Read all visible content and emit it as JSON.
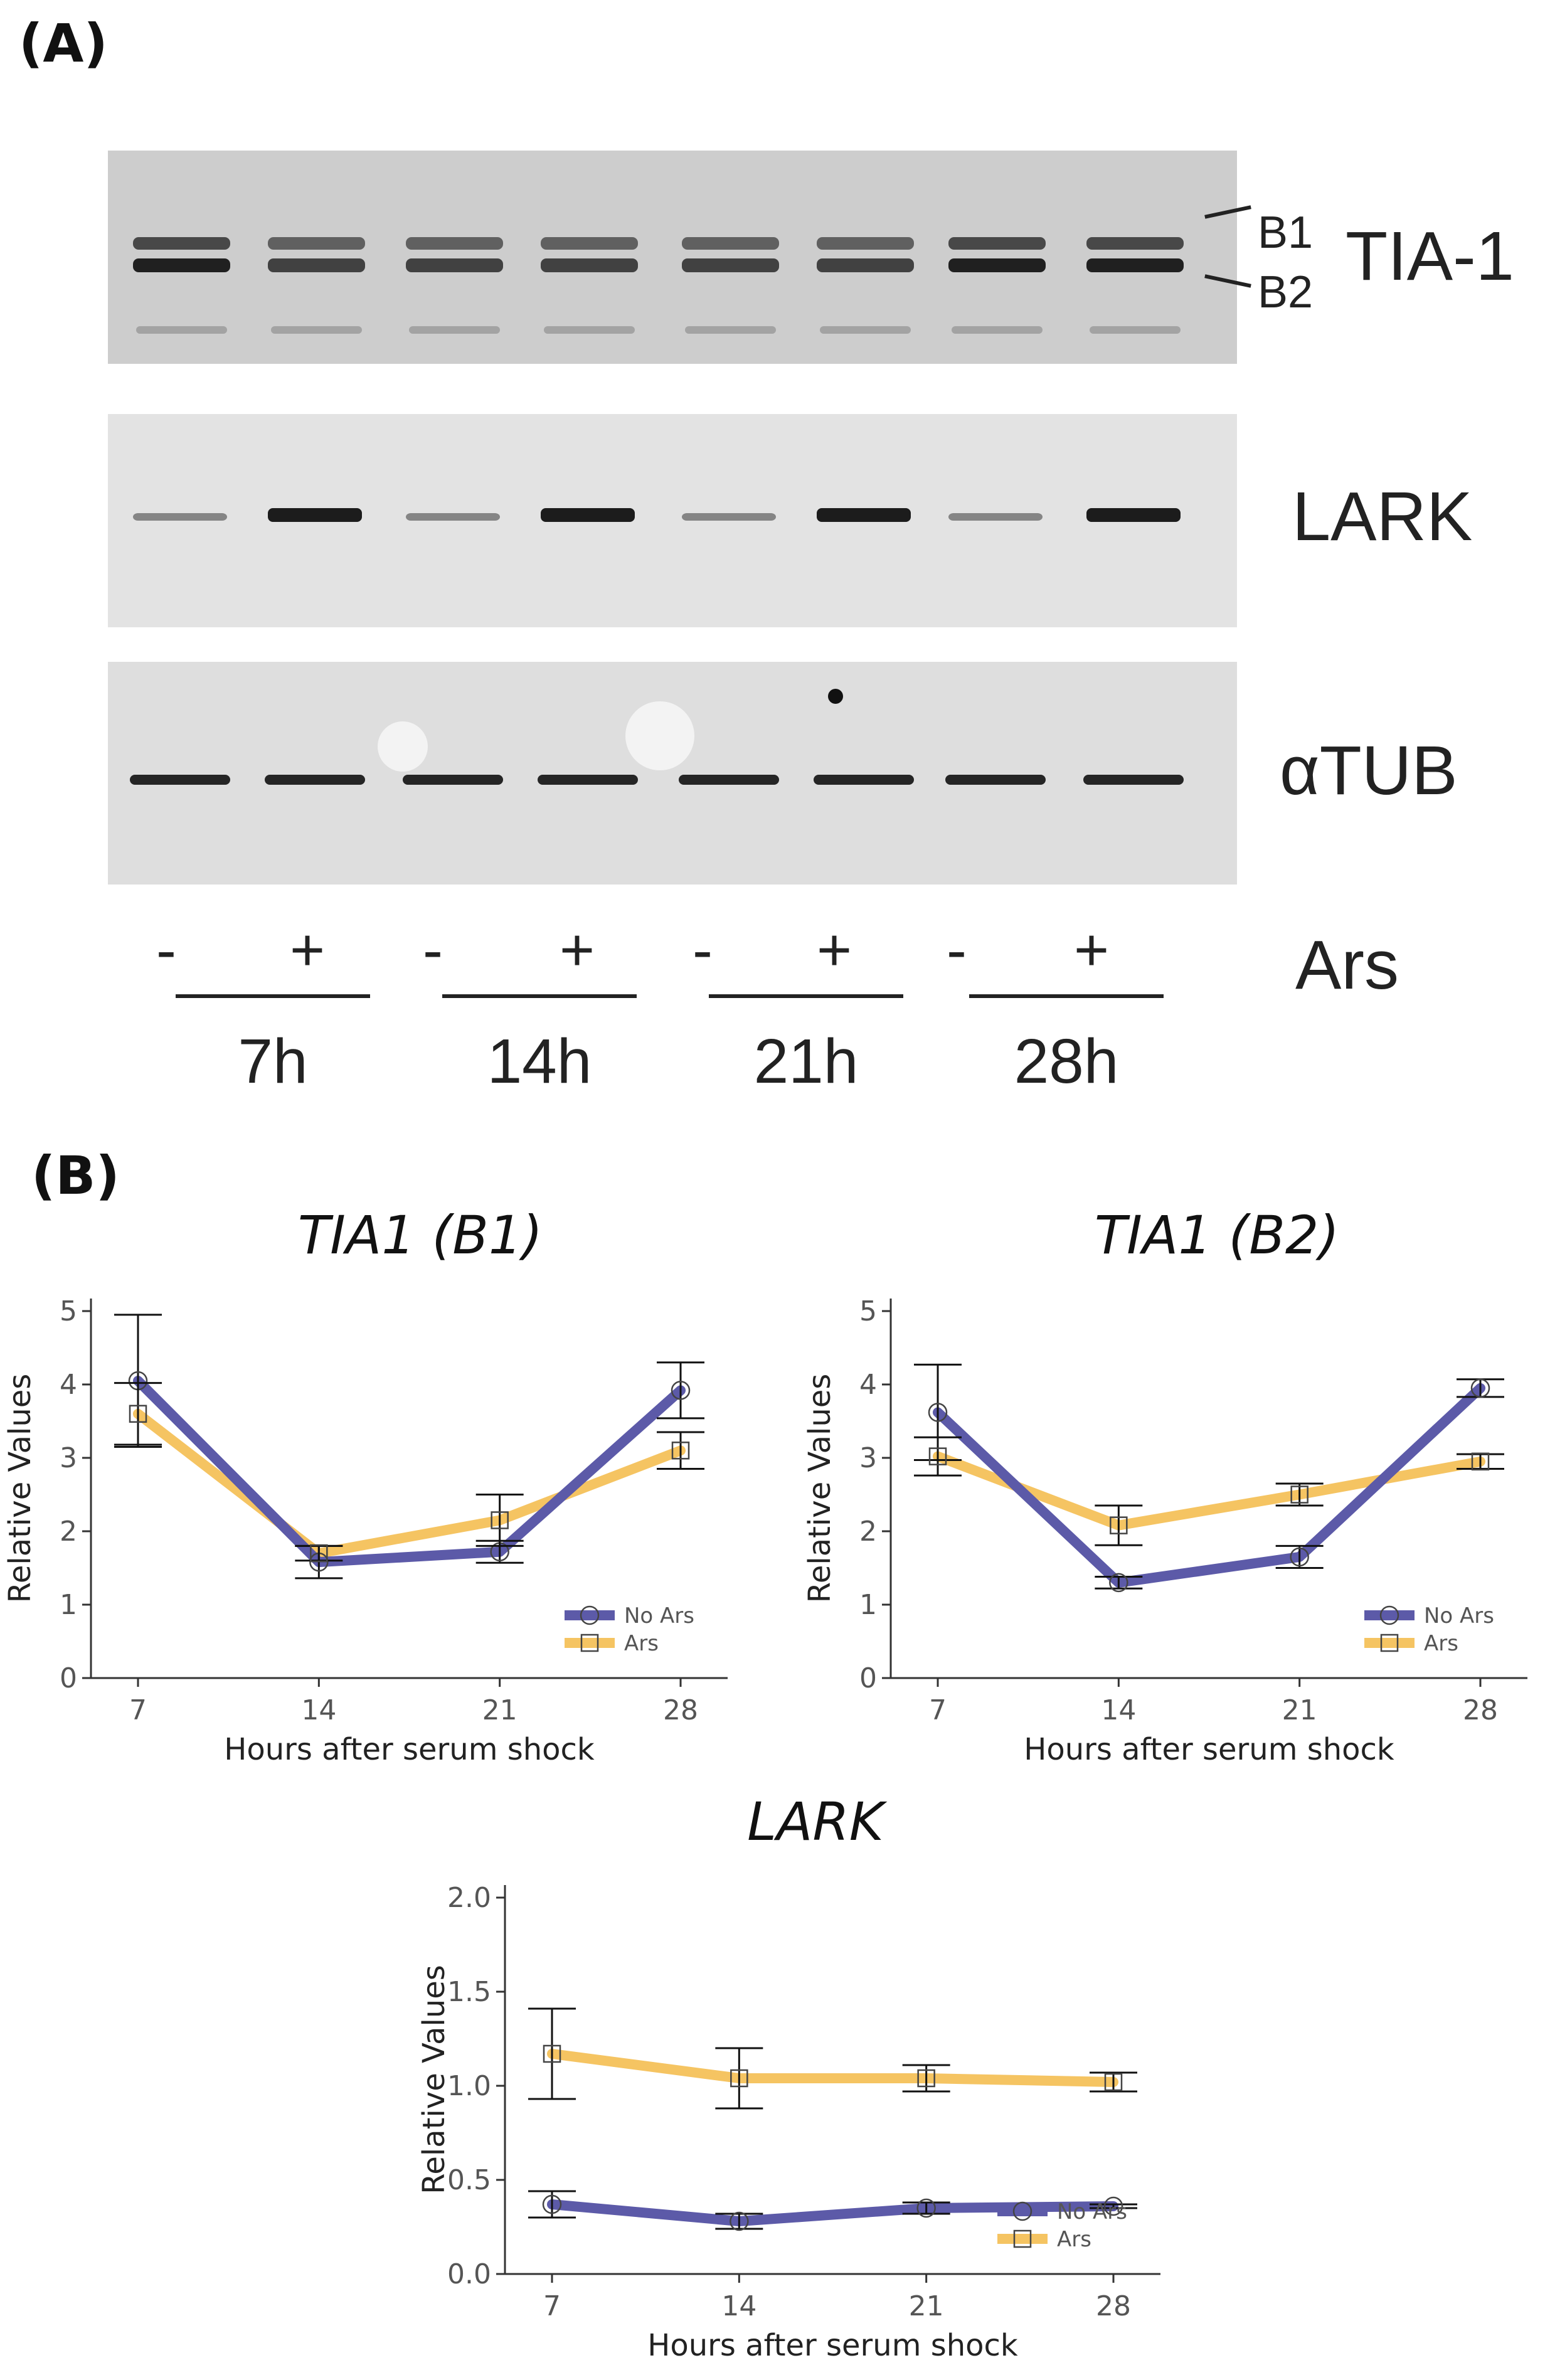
{
  "panel_a": {
    "label": "(A)",
    "blots": [
      {
        "name": "TIA-1",
        "bands": [
          "B1",
          "B2"
        ]
      },
      {
        "name": "LARK"
      },
      {
        "name": "αTUB",
        "prefix": "α",
        "suffix": "TUB"
      }
    ],
    "treatment_label": "Ars",
    "signs": [
      "-",
      "+",
      "-",
      "+",
      "-",
      "+",
      "-",
      "+"
    ],
    "timepoints": [
      "7h",
      "14h",
      "21h",
      "28h"
    ]
  },
  "panel_b": {
    "label": "(B)"
  },
  "chart_data": [
    {
      "type": "line",
      "title": "TIA1 (B1)",
      "xlabel": "Hours after serum shock",
      "ylabel": "Relative Values",
      "x": [
        7,
        14,
        21,
        28
      ],
      "xticks": [
        "7",
        "14",
        "21",
        "28"
      ],
      "yticks": [
        "0",
        "1",
        "2",
        "3",
        "4",
        "5"
      ],
      "ylim": [
        0,
        5
      ],
      "series": [
        {
          "name": "No Ars",
          "color": "#5c5aa8",
          "marker": "circle",
          "values": [
            4.05,
            1.58,
            1.72,
            3.92
          ],
          "err": [
            0.9,
            0.22,
            0.15,
            0.38
          ]
        },
        {
          "name": "Ars",
          "color": "#f5c462",
          "marker": "square",
          "values": [
            3.6,
            1.7,
            2.15,
            3.1
          ],
          "err": [
            0.42,
            0.1,
            0.35,
            0.25
          ]
        }
      ]
    },
    {
      "type": "line",
      "title": "TIA1 (B2)",
      "xlabel": "Hours after serum shock",
      "ylabel": "Relative Values",
      "x": [
        7,
        14,
        21,
        28
      ],
      "xticks": [
        "7",
        "14",
        "21",
        "28"
      ],
      "yticks": [
        "0",
        "1",
        "2",
        "3",
        "4",
        "5"
      ],
      "ylim": [
        0,
        5
      ],
      "series": [
        {
          "name": "No Ars",
          "color": "#5c5aa8",
          "marker": "circle",
          "values": [
            3.62,
            1.3,
            1.65,
            3.95
          ],
          "err": [
            0.65,
            0.08,
            0.15,
            0.12
          ]
        },
        {
          "name": "Ars",
          "color": "#f5c462",
          "marker": "square",
          "values": [
            3.02,
            2.08,
            2.5,
            2.95
          ],
          "err": [
            0.26,
            0.27,
            0.15,
            0.1
          ]
        }
      ]
    },
    {
      "type": "line",
      "title": "LARK",
      "xlabel": "Hours after serum shock",
      "ylabel": "Relative Values",
      "x": [
        7,
        14,
        21,
        28
      ],
      "xticks": [
        "7",
        "14",
        "21",
        "28"
      ],
      "yticks": [
        "0.0",
        "0.5",
        "1.0",
        "1.5",
        "2.0"
      ],
      "ylim": [
        0,
        2
      ],
      "series": [
        {
          "name": "No Ars",
          "color": "#5c5aa8",
          "marker": "circle",
          "values": [
            0.37,
            0.28,
            0.35,
            0.36
          ],
          "err": [
            0.07,
            0.04,
            0.03,
            0.01
          ]
        },
        {
          "name": "Ars",
          "color": "#f5c462",
          "marker": "square",
          "values": [
            1.17,
            1.04,
            1.04,
            1.02
          ],
          "err": [
            0.24,
            0.16,
            0.07,
            0.05
          ]
        }
      ]
    }
  ]
}
